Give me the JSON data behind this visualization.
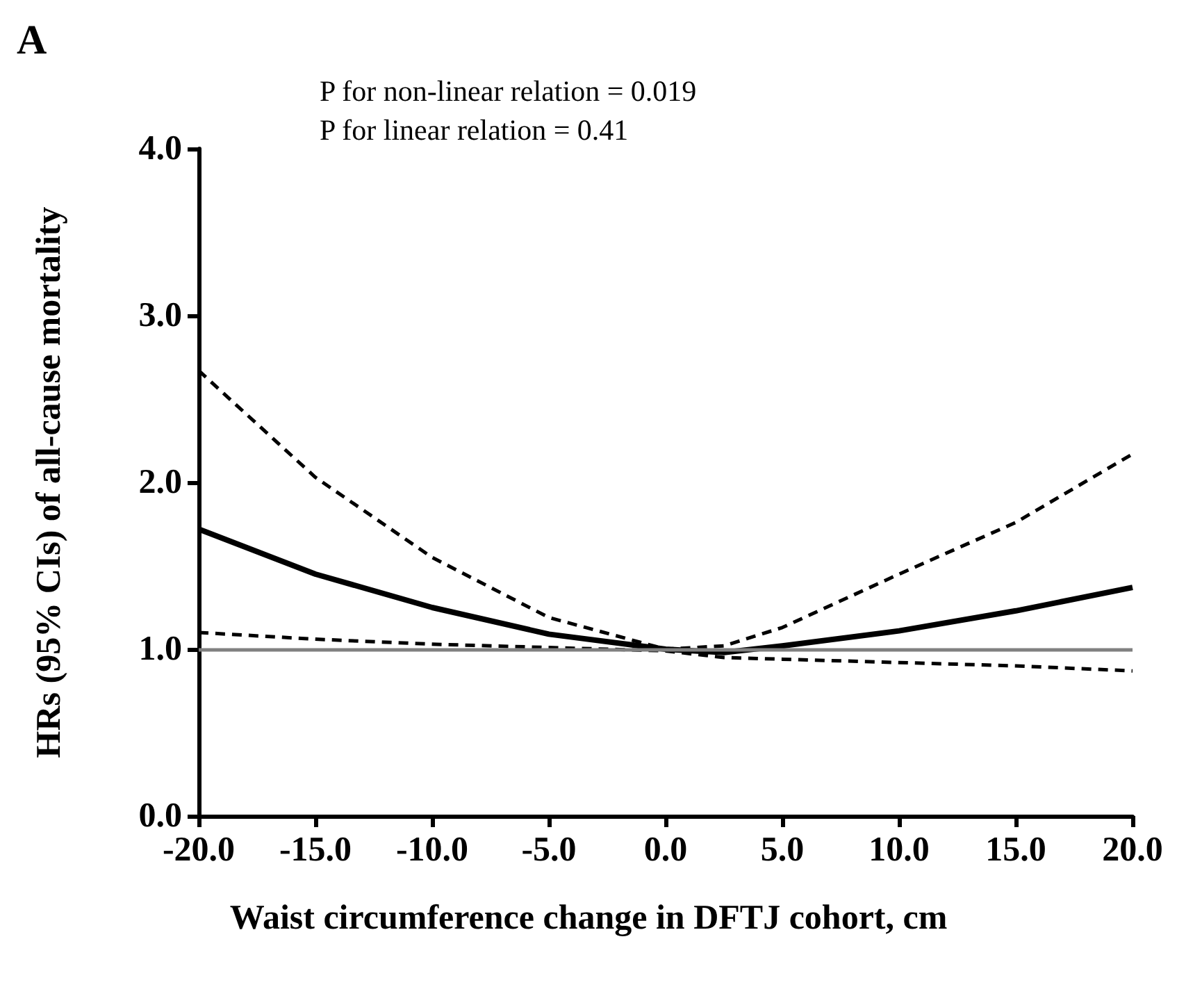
{
  "chart_data": {
    "type": "line",
    "title": "A",
    "xlabel": "Waist circumference change in DFTJ cohort, cm",
    "ylabel": "HRs (95% CIs) of all-cause mortality",
    "annotations": [
      "P for non-linear relation = 0.019",
      "P for linear relation = 0.41"
    ],
    "x": [
      -20,
      -15,
      -10,
      -5,
      0,
      2.5,
      5,
      10,
      15,
      20
    ],
    "series": [
      {
        "color": "#000000",
        "line_style": "solid",
        "values": [
          1.72,
          1.45,
          1.25,
          1.09,
          1.0,
          0.98,
          1.02,
          1.11,
          1.23,
          1.37
        ]
      },
      {
        "color": "#000000",
        "line_style": "dashed",
        "values": [
          2.67,
          2.03,
          1.55,
          1.19,
          1.0,
          1.02,
          1.13,
          1.45,
          1.76,
          2.17
        ]
      },
      {
        "color": "#000000",
        "line_style": "dashed",
        "values": [
          1.1,
          1.06,
          1.03,
          1.01,
          0.99,
          0.95,
          0.94,
          0.92,
          0.9,
          0.87
        ]
      }
    ],
    "ref_lines": [
      {
        "axis": "y",
        "value": 1,
        "color": "#808080",
        "line_style": "solid"
      }
    ],
    "xlim": [
      -20,
      20
    ],
    "ylim": [
      0,
      4
    ],
    "xticks": [
      {
        "value": -20,
        "label": "-20.0"
      },
      {
        "value": -15,
        "label": "-15.0"
      },
      {
        "value": -10,
        "label": "-10.0"
      },
      {
        "value": -5,
        "label": "-5.0"
      },
      {
        "value": 0,
        "label": "0.0"
      },
      {
        "value": 5,
        "label": "5.0"
      },
      {
        "value": 10,
        "label": "10.0"
      },
      {
        "value": 15,
        "label": "15.0"
      },
      {
        "value": 20,
        "label": "20.0"
      }
    ],
    "yticks": [
      {
        "value": 0,
        "label": "0.0"
      },
      {
        "value": 1,
        "label": "1.0"
      },
      {
        "value": 2,
        "label": "2.0"
      },
      {
        "value": 3,
        "label": "3.0"
      },
      {
        "value": 4,
        "label": "4.0"
      }
    ],
    "grid": false,
    "marker": "none"
  }
}
